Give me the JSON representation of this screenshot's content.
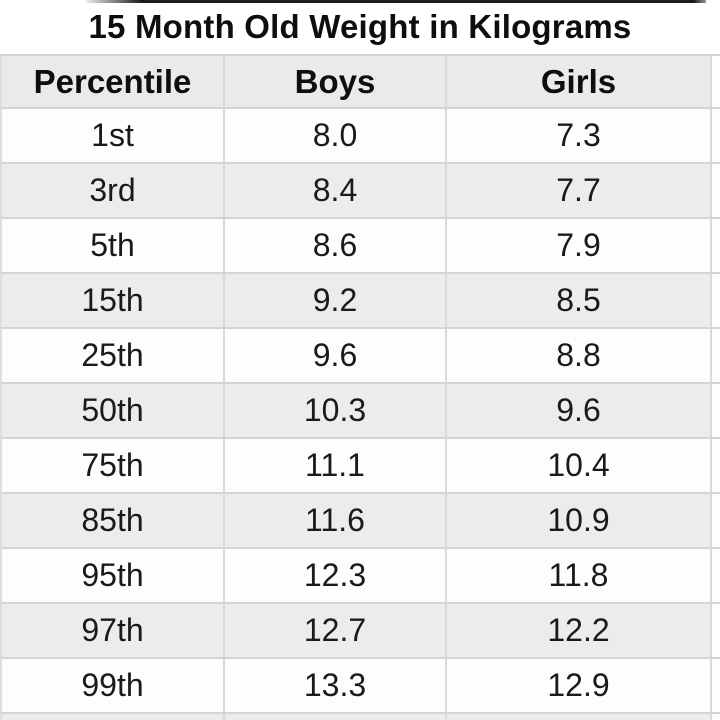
{
  "title": "15 Month Old Weight in Kilograms",
  "table": {
    "columns": {
      "c1": "Percentile",
      "c2": "Boys",
      "c3": "Girls"
    },
    "rows": [
      {
        "p": "1st",
        "b": "8.0",
        "g": "7.3"
      },
      {
        "p": "3rd",
        "b": "8.4",
        "g": "7.7"
      },
      {
        "p": "5th",
        "b": "8.6",
        "g": "7.9"
      },
      {
        "p": "15th",
        "b": "9.2",
        "g": "8.5"
      },
      {
        "p": "25th",
        "b": "9.6",
        "g": "8.8"
      },
      {
        "p": "50th",
        "b": "10.3",
        "g": "9.6"
      },
      {
        "p": "75th",
        "b": "11.1",
        "g": "10.4"
      },
      {
        "p": "85th",
        "b": "11.6",
        "g": "10.9"
      },
      {
        "p": "95th",
        "b": "12.3",
        "g": "11.8"
      },
      {
        "p": "97th",
        "b": "12.7",
        "g": "12.2"
      },
      {
        "p": "99th",
        "b": "13.3",
        "g": "12.9"
      }
    ]
  },
  "chart_data": {
    "type": "table",
    "title": "15 Month Old Weight in Kilograms",
    "columns": [
      "Percentile",
      "Boys",
      "Girls"
    ],
    "rows": [
      [
        "1st",
        8.0,
        7.3
      ],
      [
        "3rd",
        8.4,
        7.7
      ],
      [
        "5th",
        8.6,
        7.9
      ],
      [
        "15th",
        9.2,
        8.5
      ],
      [
        "25th",
        9.6,
        8.8
      ],
      [
        "50th",
        10.3,
        9.6
      ],
      [
        "75th",
        11.1,
        10.4
      ],
      [
        "85th",
        11.6,
        10.9
      ],
      [
        "95th",
        12.3,
        11.8
      ],
      [
        "97th",
        12.7,
        12.2
      ],
      [
        "99th",
        13.3,
        12.9
      ]
    ],
    "layout_hints": {
      "striped_rows": true,
      "header_background": "#eaeaea",
      "stripe_background": "#ececec",
      "grid_line_color": "#d6d6d6",
      "units": "kilograms"
    }
  },
  "colors": {
    "header_bg": "#eaeaea",
    "row_alt_bg": "#ececec",
    "row_bg": "#fdfdfd",
    "grid_line": "#d6d6d6",
    "text": "#161616",
    "top_bar": "#1c1c1c"
  }
}
